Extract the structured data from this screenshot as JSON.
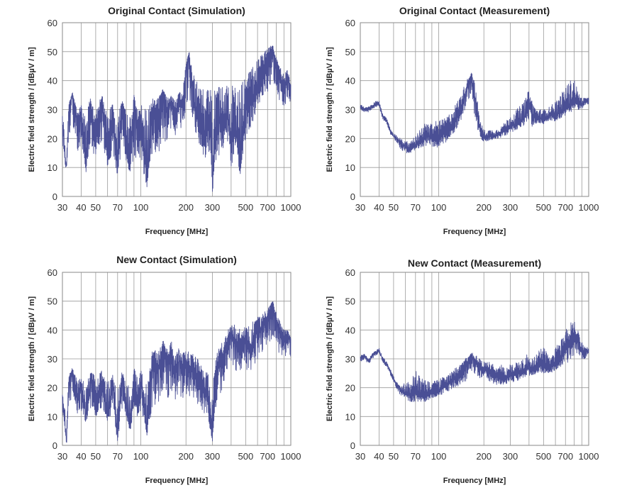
{
  "figure": {
    "grid_frequencies": [
      30,
      40,
      50,
      60,
      70,
      80,
      90,
      100,
      200,
      300,
      400,
      500,
      600,
      700,
      800,
      900,
      1000
    ],
    "y_grid": [
      0,
      10,
      20,
      30,
      40,
      50,
      60
    ]
  },
  "chart_data": [
    {
      "type": "line",
      "title": "Original Contact (Simulation)",
      "xlabel": "Frequency [MHz]",
      "ylabel": "Electric field strength  / [dBµV / m]",
      "x_scale": "log",
      "xlim": [
        30,
        1000
      ],
      "ylim": [
        0,
        60
      ],
      "x_tick_labels": [
        "30",
        "40",
        "50",
        "70",
        "100",
        "200",
        "300",
        "500",
        "700",
        "1000"
      ],
      "y_tick_labels": [
        "0",
        "10",
        "20",
        "30",
        "40",
        "50",
        "60"
      ],
      "grid": true,
      "series": [
        {
          "color": "#4a4f95",
          "x": [
            30,
            31,
            32,
            33,
            35,
            38,
            40,
            43,
            46,
            50,
            55,
            60,
            65,
            70,
            75,
            80,
            85,
            90,
            95,
            100,
            110,
            120,
            130,
            140,
            150,
            160,
            170,
            180,
            190,
            200,
            210,
            220,
            230,
            240,
            250,
            270,
            290,
            300,
            320,
            350,
            380,
            400,
            430,
            460,
            500,
            540,
            580,
            620,
            660,
            700,
            730,
            760,
            780,
            800,
            830,
            860,
            900,
            950,
            1000
          ],
          "y": [
            26,
            14,
            10,
            30,
            36,
            24,
            28,
            9,
            30,
            22,
            34,
            12,
            30,
            8,
            32,
            20,
            10,
            35,
            22,
            28,
            4,
            32,
            26,
            37,
            30,
            33,
            26,
            35,
            30,
            45,
            50,
            36,
            30,
            28,
            24,
            20,
            26,
            2,
            30,
            22,
            28,
            18,
            24,
            8,
            30,
            32,
            36,
            40,
            44,
            48,
            50,
            52,
            48,
            46,
            44,
            40,
            38,
            42,
            36
          ],
          "min": [
            18,
            10,
            10,
            20,
            24,
            14,
            18,
            8,
            16,
            14,
            18,
            10,
            14,
            7,
            16,
            10,
            8,
            14,
            10,
            12,
            3,
            16,
            14,
            20,
            18,
            22,
            20,
            24,
            22,
            30,
            34,
            28,
            22,
            20,
            16,
            12,
            16,
            1,
            14,
            14,
            18,
            10,
            16,
            7,
            20,
            24,
            28,
            32,
            34,
            36,
            38,
            40,
            38,
            36,
            34,
            32,
            30,
            34,
            30
          ],
          "max": [
            28,
            24,
            14,
            32,
            36,
            30,
            32,
            28,
            34,
            30,
            35,
            30,
            32,
            28,
            33,
            30,
            28,
            35,
            30,
            32,
            30,
            34,
            34,
            37,
            34,
            35,
            33,
            36,
            36,
            46,
            50,
            44,
            40,
            40,
            38,
            36,
            38,
            36,
            38,
            38,
            40,
            38,
            40,
            38,
            42,
            44,
            46,
            48,
            50,
            51,
            52,
            52,
            50,
            48,
            46,
            44,
            42,
            44,
            40
          ]
        }
      ]
    },
    {
      "type": "line",
      "title": "Original Contact (Measurement)",
      "xlabel": "Frequency [MHz]",
      "ylabel": "Electric field strength  / [dBµV / m]",
      "x_scale": "log",
      "xlim": [
        30,
        1000
      ],
      "ylim": [
        0,
        60
      ],
      "x_tick_labels": [
        "30",
        "40",
        "50",
        "70",
        "100",
        "200",
        "300",
        "500",
        "700",
        "1000"
      ],
      "y_tick_labels": [
        "0",
        "10",
        "20",
        "30",
        "40",
        "50",
        "60"
      ],
      "grid": true,
      "series": [
        {
          "color": "#4a4f95",
          "x": [
            30,
            32,
            34,
            36,
            38,
            40,
            42,
            45,
            48,
            52,
            56,
            60,
            65,
            70,
            75,
            80,
            90,
            100,
            110,
            120,
            130,
            140,
            150,
            160,
            165,
            170,
            180,
            190,
            200,
            220,
            240,
            260,
            280,
            300,
            330,
            360,
            380,
            400,
            420,
            450,
            500,
            550,
            600,
            650,
            700,
            750,
            800,
            850,
            900,
            950,
            1000
          ],
          "y": [
            31,
            30,
            30,
            31,
            32,
            32,
            28,
            26,
            22,
            20,
            18,
            17,
            16,
            18,
            19,
            20,
            21,
            20,
            22,
            24,
            27,
            30,
            35,
            40,
            42,
            38,
            28,
            22,
            20,
            21,
            21,
            22,
            23,
            24,
            25,
            26,
            28,
            33,
            28,
            27,
            27,
            28,
            28,
            29,
            30,
            31,
            33,
            32,
            32,
            33,
            33
          ],
          "min": [
            30,
            29,
            29,
            30,
            31,
            31,
            27,
            25,
            21,
            19,
            16,
            15,
            15,
            16,
            17,
            17,
            17,
            17,
            18,
            20,
            23,
            26,
            30,
            34,
            36,
            30,
            24,
            19,
            19,
            19,
            20,
            20,
            21,
            22,
            23,
            24,
            25,
            26,
            24,
            25,
            25,
            26,
            26,
            27,
            28,
            29,
            30,
            30,
            30,
            31,
            32
          ],
          "max": [
            32,
            31,
            31,
            32,
            33,
            33,
            29,
            27,
            23,
            21,
            20,
            19,
            19,
            21,
            23,
            25,
            26,
            26,
            27,
            29,
            32,
            35,
            39,
            42,
            43,
            42,
            34,
            26,
            23,
            23,
            23,
            24,
            26,
            28,
            30,
            32,
            34,
            37,
            33,
            30,
            30,
            31,
            33,
            35,
            38,
            40,
            41,
            36,
            34,
            34,
            34
          ]
        }
      ]
    },
    {
      "type": "line",
      "title": "New Contact (Simulation)",
      "xlabel": "Frequency [MHz]",
      "ylabel": "Electric field strength  / [dBµV / m]",
      "x_scale": "log",
      "xlim": [
        30,
        1000
      ],
      "ylim": [
        0,
        60
      ],
      "x_tick_labels": [
        "30",
        "40",
        "50",
        "70",
        "100",
        "200",
        "300",
        "500",
        "700",
        "1000"
      ],
      "y_tick_labels": [
        "0",
        "10",
        "20",
        "30",
        "40",
        "50",
        "60"
      ],
      "grid": true,
      "series": [
        {
          "color": "#4a4f95",
          "x": [
            30,
            31,
            32,
            33,
            35,
            38,
            40,
            43,
            46,
            50,
            55,
            60,
            65,
            70,
            75,
            80,
            85,
            90,
            95,
            100,
            110,
            120,
            130,
            140,
            150,
            160,
            170,
            180,
            190,
            200,
            220,
            240,
            260,
            280,
            290,
            300,
            320,
            350,
            380,
            400,
            430,
            460,
            500,
            540,
            580,
            620,
            660,
            700,
            730,
            760,
            780,
            800,
            830,
            860,
            900,
            950,
            1000
          ],
          "y": [
            17,
            8,
            0,
            22,
            26,
            16,
            20,
            10,
            24,
            14,
            22,
            10,
            22,
            2,
            24,
            12,
            6,
            24,
            14,
            22,
            4,
            30,
            26,
            34,
            28,
            32,
            24,
            30,
            26,
            28,
            26,
            24,
            20,
            16,
            8,
            2,
            26,
            30,
            34,
            38,
            36,
            32,
            36,
            34,
            38,
            40,
            42,
            44,
            48,
            50,
            46,
            44,
            40,
            38,
            36,
            38,
            36
          ],
          "min": [
            12,
            6,
            0,
            14,
            16,
            10,
            12,
            8,
            12,
            10,
            12,
            8,
            12,
            1,
            12,
            8,
            5,
            12,
            10,
            12,
            3,
            14,
            14,
            18,
            16,
            18,
            16,
            18,
            16,
            18,
            16,
            14,
            12,
            8,
            5,
            1,
            14,
            20,
            24,
            28,
            26,
            24,
            26,
            26,
            28,
            30,
            32,
            34,
            36,
            38,
            36,
            34,
            32,
            32,
            30,
            32,
            30
          ],
          "max": [
            18,
            14,
            8,
            24,
            27,
            22,
            24,
            20,
            26,
            24,
            26,
            22,
            25,
            20,
            26,
            22,
            20,
            27,
            24,
            26,
            22,
            34,
            32,
            37,
            34,
            36,
            32,
            34,
            32,
            33,
            32,
            30,
            28,
            26,
            22,
            20,
            32,
            36,
            40,
            42,
            42,
            40,
            42,
            42,
            44,
            45,
            46,
            48,
            49,
            50,
            48,
            46,
            44,
            42,
            40,
            40,
            38
          ]
        }
      ]
    },
    {
      "type": "line",
      "title": "New Contact (Measurement)",
      "xlabel": "Frequency [MHz]",
      "ylabel": "Electric field strength  / [dBµV / m]",
      "x_scale": "log",
      "xlim": [
        30,
        1000
      ],
      "ylim": [
        0,
        60
      ],
      "x_tick_labels": [
        "30",
        "40",
        "50",
        "70",
        "100",
        "200",
        "300",
        "500",
        "700",
        "1000"
      ],
      "y_tick_labels": [
        "0",
        "10",
        "20",
        "30",
        "40",
        "50",
        "60"
      ],
      "grid": true,
      "series": [
        {
          "color": "#4a4f95",
          "x": [
            30,
            32,
            34,
            36,
            38,
            40,
            42,
            45,
            48,
            52,
            56,
            60,
            65,
            70,
            75,
            80,
            90,
            100,
            110,
            120,
            130,
            140,
            150,
            160,
            170,
            180,
            190,
            200,
            220,
            240,
            260,
            280,
            300,
            330,
            360,
            380,
            400,
            420,
            450,
            500,
            550,
            600,
            650,
            700,
            750,
            800,
            850,
            900,
            950,
            1000
          ],
          "y": [
            30,
            31,
            29,
            31,
            32,
            33,
            30,
            28,
            25,
            21,
            19,
            18,
            17,
            18,
            17,
            18,
            18,
            19,
            21,
            22,
            24,
            25,
            27,
            29,
            30,
            28,
            27,
            26,
            26,
            24,
            24,
            23,
            24,
            25,
            25,
            26,
            27,
            26,
            27,
            28,
            27,
            28,
            30,
            33,
            35,
            38,
            36,
            33,
            32,
            33
          ],
          "min": [
            29,
            30,
            28,
            30,
            31,
            32,
            29,
            27,
            24,
            20,
            17,
            16,
            15,
            15,
            15,
            15,
            16,
            17,
            18,
            19,
            20,
            21,
            22,
            24,
            25,
            24,
            23,
            23,
            22,
            21,
            21,
            21,
            22,
            22,
            23,
            24,
            24,
            24,
            25,
            25,
            25,
            26,
            27,
            28,
            29,
            31,
            31,
            30,
            30,
            32
          ],
          "max": [
            31,
            32,
            30,
            32,
            33,
            34,
            31,
            29,
            26,
            22,
            21,
            22,
            22,
            26,
            24,
            23,
            22,
            23,
            24,
            25,
            27,
            28,
            30,
            32,
            32,
            31,
            30,
            29,
            29,
            28,
            28,
            27,
            28,
            29,
            30,
            31,
            33,
            30,
            32,
            35,
            30,
            34,
            37,
            40,
            43,
            43,
            40,
            36,
            34,
            34
          ]
        }
      ]
    }
  ]
}
